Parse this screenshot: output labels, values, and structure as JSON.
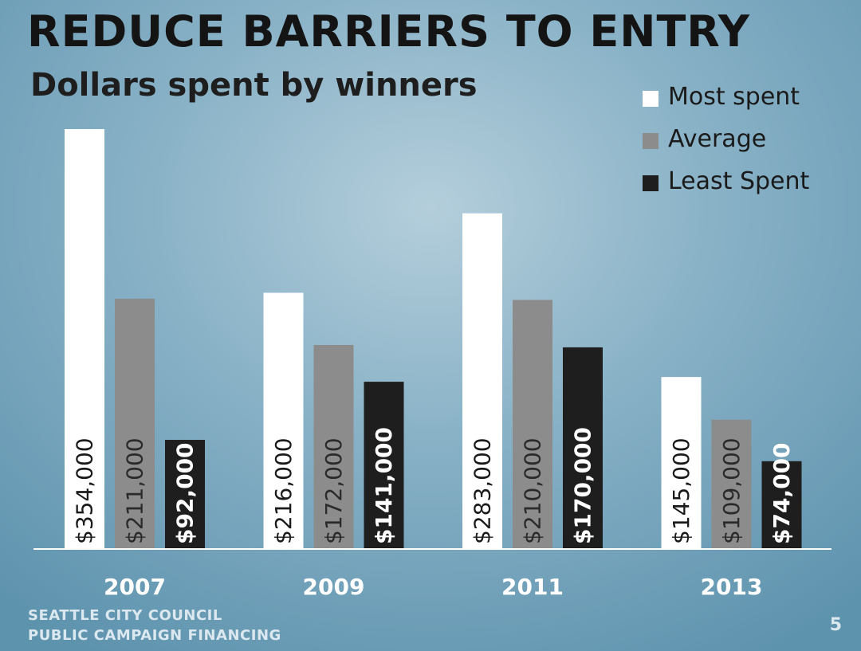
{
  "slide": {
    "title": "REDUCE BARRIERS TO ENTRY",
    "footer_line1": "SEATTLE CITY COUNCIL",
    "footer_line2": "PUBLIC CAMPAIGN FINANCING",
    "page_number": "5"
  },
  "colors": {
    "most_spent": "#ffffff",
    "average": "#8c8c8c",
    "least_spent": "#1e1e1e"
  },
  "chart_data": {
    "type": "bar",
    "title": "Dollars spent by winners",
    "categories": [
      "2007",
      "2009",
      "2011",
      "2013"
    ],
    "series": [
      {
        "name": "Most spent",
        "values": [
          354000,
          216000,
          283000,
          145000
        ],
        "labels": [
          "$354,000",
          "$216,000",
          "$283,000",
          "$145,000"
        ]
      },
      {
        "name": "Average",
        "values": [
          211000,
          172000,
          210000,
          109000
        ],
        "labels": [
          "$211,000",
          "$172,000",
          "$210,000",
          "$109,000"
        ]
      },
      {
        "name": "Least Spent",
        "values": [
          92000,
          141000,
          170000,
          74000
        ],
        "labels": [
          "$92,000",
          "$141,000",
          "$170,000",
          "$74,000"
        ]
      }
    ],
    "xlabel": "",
    "ylabel": "",
    "ylim": [
      0,
      354000
    ],
    "grid": false,
    "legend": "top-right"
  }
}
